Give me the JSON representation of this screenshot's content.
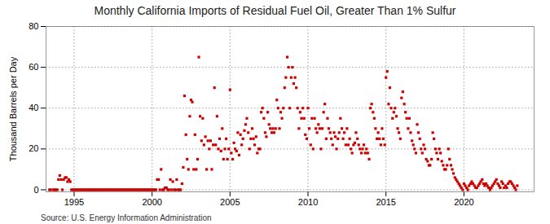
{
  "chart_data": {
    "type": "scatter",
    "title": "Monthly California Imports of Residual Fuel Oil, Greater Than 1% Sulfur",
    "ylabel": "Thousand Barrels per Day",
    "source": "Source: U.S. Energy Information Administration",
    "color": "#cc0000",
    "marker": "square",
    "grid": true,
    "xlim": [
      1993.2,
      2024.5
    ],
    "ylim": [
      -1,
      80
    ],
    "xticks": [
      1995,
      2000,
      2005,
      2010,
      2015,
      2020
    ],
    "yticks": [
      0,
      20,
      40,
      60,
      80
    ],
    "x": [
      1993.42,
      1993.5,
      1993.67,
      1993.75,
      1993.83,
      1993.92,
      1994.0,
      1994.08,
      1994.17,
      1994.25,
      1994.33,
      1994.42,
      1994.5,
      1994.58,
      1994.67,
      1994.75,
      1994.83,
      1994.92,
      1995.0,
      1995.08,
      1995.17,
      1995.25,
      1995.33,
      1995.42,
      1995.5,
      1995.58,
      1995.67,
      1995.75,
      1995.83,
      1995.92,
      1996.0,
      1996.08,
      1996.17,
      1996.25,
      1996.33,
      1996.42,
      1996.5,
      1996.58,
      1996.67,
      1996.75,
      1996.83,
      1996.92,
      1997.0,
      1997.08,
      1997.17,
      1997.25,
      1997.33,
      1997.42,
      1997.5,
      1997.58,
      1997.67,
      1997.75,
      1997.83,
      1997.92,
      1998.0,
      1998.08,
      1998.17,
      1998.25,
      1998.33,
      1998.42,
      1998.5,
      1998.58,
      1998.67,
      1998.75,
      1998.83,
      1998.92,
      1999.0,
      1999.08,
      1999.17,
      1999.25,
      1999.33,
      1999.42,
      1999.5,
      1999.58,
      1999.67,
      1999.75,
      1999.83,
      1999.92,
      2000.0,
      2000.08,
      2000.17,
      2000.25,
      2000.33,
      2000.42,
      2000.5,
      2000.58,
      2000.67,
      2000.75,
      2000.83,
      2000.92,
      2001.0,
      2001.08,
      2001.17,
      2001.25,
      2001.33,
      2001.42,
      2001.5,
      2001.58,
      2001.67,
      2001.75,
      2001.83,
      2001.92,
      2002.0,
      2002.08,
      2002.17,
      2002.25,
      2002.33,
      2002.42,
      2002.5,
      2002.58,
      2002.67,
      2002.75,
      2002.83,
      2002.92,
      2003.0,
      2003.08,
      2003.17,
      2003.25,
      2003.33,
      2003.42,
      2003.5,
      2003.58,
      2003.67,
      2003.75,
      2003.83,
      2003.92,
      2004.0,
      2004.08,
      2004.17,
      2004.25,
      2004.33,
      2004.42,
      2004.5,
      2004.58,
      2004.67,
      2004.75,
      2004.83,
      2004.92,
      2005.0,
      2005.08,
      2005.17,
      2005.25,
      2005.33,
      2005.42,
      2005.5,
      2005.58,
      2005.67,
      2005.75,
      2005.83,
      2005.92,
      2006.0,
      2006.08,
      2006.17,
      2006.25,
      2006.33,
      2006.42,
      2006.5,
      2006.58,
      2006.67,
      2006.75,
      2006.83,
      2006.92,
      2007.0,
      2007.08,
      2007.17,
      2007.25,
      2007.33,
      2007.42,
      2007.5,
      2007.58,
      2007.67,
      2007.75,
      2007.83,
      2007.92,
      2008.0,
      2008.08,
      2008.17,
      2008.25,
      2008.33,
      2008.42,
      2008.5,
      2008.58,
      2008.67,
      2008.75,
      2008.83,
      2008.92,
      2009.0,
      2009.08,
      2009.17,
      2009.25,
      2009.33,
      2009.42,
      2009.5,
      2009.58,
      2009.67,
      2009.75,
      2009.83,
      2009.92,
      2010.0,
      2010.08,
      2010.17,
      2010.25,
      2010.33,
      2010.42,
      2010.5,
      2010.58,
      2010.67,
      2010.75,
      2010.83,
      2010.92,
      2011.0,
      2011.08,
      2011.17,
      2011.25,
      2011.33,
      2011.42,
      2011.5,
      2011.58,
      2011.67,
      2011.75,
      2011.83,
      2011.92,
      2012.0,
      2012.08,
      2012.17,
      2012.25,
      2012.33,
      2012.42,
      2012.5,
      2012.58,
      2012.67,
      2012.75,
      2012.83,
      2012.92,
      2013.0,
      2013.08,
      2013.17,
      2013.25,
      2013.33,
      2013.42,
      2013.5,
      2013.58,
      2013.67,
      2013.75,
      2013.83,
      2013.92,
      2014.0,
      2014.08,
      2014.17,
      2014.25,
      2014.33,
      2014.42,
      2014.5,
      2014.58,
      2014.67,
      2014.75,
      2014.83,
      2014.92,
      2015.0,
      2015.08,
      2015.17,
      2015.25,
      2015.33,
      2015.42,
      2015.5,
      2015.58,
      2015.67,
      2015.75,
      2015.83,
      2015.92,
      2016.0,
      2016.08,
      2016.17,
      2016.25,
      2016.33,
      2016.42,
      2016.5,
      2016.58,
      2016.67,
      2016.75,
      2016.83,
      2016.92,
      2017.0,
      2017.08,
      2017.17,
      2017.25,
      2017.33,
      2017.42,
      2017.5,
      2017.58,
      2017.67,
      2017.75,
      2017.83,
      2017.92,
      2018.0,
      2018.08,
      2018.17,
      2018.25,
      2018.33,
      2018.42,
      2018.5,
      2018.58,
      2018.67,
      2018.75,
      2018.83,
      2018.92,
      2019.0,
      2019.08,
      2019.17,
      2019.25,
      2019.33,
      2019.42,
      2019.5,
      2019.58,
      2019.67,
      2019.75,
      2019.83,
      2019.92,
      2020.0,
      2020.08,
      2020.17,
      2020.25,
      2020.33,
      2020.42,
      2020.5,
      2020.58,
      2020.67,
      2020.75,
      2020.83,
      2020.92,
      2021.0,
      2021.08,
      2021.17,
      2021.25,
      2021.33,
      2021.42,
      2021.5,
      2021.58,
      2021.67,
      2021.75,
      2021.83,
      2021.92,
      2022.0,
      2022.08,
      2022.17,
      2022.25,
      2022.33,
      2022.42,
      2022.5,
      2022.58,
      2022.67,
      2022.75,
      2022.83,
      2022.92,
      2023.0,
      2023.08,
      2023.17,
      2023.25,
      2023.33,
      2023.42
    ],
    "values": [
      0,
      0,
      0,
      0,
      0,
      0,
      5,
      7,
      5,
      0,
      5,
      6,
      6,
      4,
      5,
      4,
      0,
      0,
      0,
      0,
      0,
      0,
      0,
      0,
      0,
      0,
      0,
      0,
      0,
      0,
      0,
      0,
      0,
      0,
      0,
      0,
      0,
      0,
      0,
      0,
      0,
      0,
      0,
      0,
      0,
      0,
      0,
      0,
      0,
      0,
      0,
      0,
      0,
      0,
      0,
      0,
      0,
      0,
      0,
      0,
      0,
      0,
      0,
      0,
      0,
      0,
      0,
      0,
      0,
      0,
      0,
      0,
      0,
      0,
      0,
      0,
      0,
      0,
      0,
      0,
      0,
      0,
      5,
      5,
      0,
      10,
      0,
      0,
      1,
      1,
      0,
      0,
      5,
      0,
      4,
      0,
      0,
      5,
      0,
      0,
      0,
      3,
      11,
      46,
      27,
      15,
      10,
      36,
      44,
      43,
      10,
      27,
      10,
      15,
      65,
      36,
      24,
      35,
      22,
      26,
      10,
      24,
      20,
      24,
      10,
      22,
      50,
      22,
      36,
      20,
      25,
      19,
      30,
      15,
      20,
      25,
      15,
      20,
      49,
      18,
      15,
      23,
      20,
      19,
      28,
      17,
      27,
      22,
      25,
      29,
      32,
      35,
      28,
      20,
      25,
      30,
      25,
      22,
      26,
      18,
      20,
      20,
      38,
      40,
      35,
      28,
      26,
      38,
      32,
      30,
      28,
      30,
      28,
      30,
      44,
      40,
      30,
      38,
      35,
      40,
      50,
      55,
      65,
      60,
      40,
      55,
      60,
      52,
      55,
      50,
      40,
      30,
      38,
      35,
      40,
      35,
      27,
      25,
      40,
      30,
      22,
      35,
      20,
      35,
      30,
      28,
      32,
      30,
      20,
      30,
      38,
      42,
      25,
      35,
      30,
      28,
      25,
      22,
      28,
      26,
      20,
      25,
      28,
      35,
      30,
      25,
      28,
      22,
      30,
      22,
      25,
      20,
      18,
      22,
      23,
      28,
      25,
      22,
      20,
      18,
      20,
      22,
      18,
      20,
      18,
      15,
      40,
      42,
      38,
      35,
      30,
      25,
      28,
      25,
      22,
      30,
      25,
      22,
      55,
      58,
      42,
      50,
      40,
      35,
      38,
      40,
      36,
      30,
      28,
      25,
      45,
      48,
      42,
      38,
      35,
      30,
      35,
      28,
      24,
      22,
      20,
      18,
      32,
      28,
      25,
      20,
      18,
      22,
      20,
      15,
      14,
      12,
      12,
      15,
      28,
      25,
      20,
      18,
      15,
      20,
      18,
      14,
      12,
      10,
      10,
      12,
      20,
      15,
      12,
      10,
      8,
      6,
      5,
      4,
      3,
      2,
      1,
      0,
      3,
      2,
      1,
      0,
      2,
      3,
      4,
      3,
      2,
      1,
      1,
      2,
      3,
      4,
      5,
      3,
      2,
      3,
      2,
      1,
      0,
      1,
      2,
      3,
      4,
      5,
      3,
      2,
      1,
      4,
      3,
      1,
      2,
      1,
      3,
      4,
      4,
      3,
      2,
      1,
      0,
      2
    ]
  }
}
